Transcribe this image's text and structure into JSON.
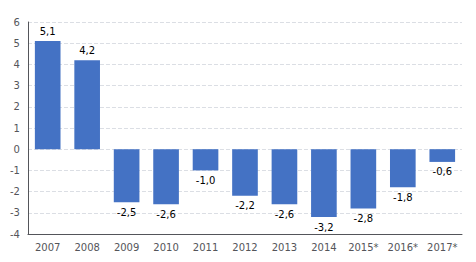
{
  "chart_data": {
    "type": "bar",
    "categories": [
      "2007",
      "2008",
      "2009",
      "2010",
      "2011",
      "2012",
      "2013",
      "2014",
      "2015*",
      "2016*",
      "2017*"
    ],
    "values": [
      5.1,
      4.2,
      -2.5,
      -2.6,
      -1.0,
      -2.2,
      -2.6,
      -3.2,
      -2.8,
      -1.8,
      -0.6
    ],
    "value_labels": [
      "5,1",
      "4,2",
      "-2,5",
      "-2,6",
      "-1,0",
      "-2,2",
      "-2,6",
      "-3,2",
      "-2,8",
      "-1,8",
      "-0,6"
    ],
    "color": "#4472C4",
    "ylim": [
      -4,
      6
    ],
    "yticks": [
      -4,
      -3,
      -2,
      -1,
      0,
      1,
      2,
      3,
      4,
      5,
      6
    ],
    "grid": true,
    "data_labels": true
  }
}
